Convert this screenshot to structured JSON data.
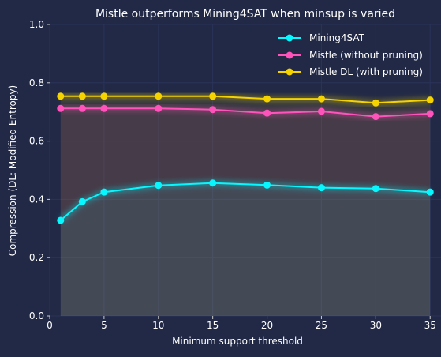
{
  "chart_data": {
    "type": "line",
    "title": "Mistle outperforms Mining4SAT when minsup is varied",
    "xlabel": "Minimum support threshold",
    "ylabel": "Compression (DL: Modified Entropy)",
    "xlim": [
      0,
      36
    ],
    "ylim": [
      0,
      1.0
    ],
    "xticks": [
      0,
      5,
      10,
      15,
      20,
      25,
      30,
      35
    ],
    "yticks": [
      0.0,
      0.2,
      0.4,
      0.6,
      0.8,
      1.0
    ],
    "xtick_labels": [
      "0",
      "5",
      "10",
      "15",
      "20",
      "25",
      "30",
      "35"
    ],
    "ytick_labels": [
      "0.0",
      "0.2",
      "0.4",
      "0.6",
      "0.8",
      "1.0"
    ],
    "grid": true,
    "legend_position": "top-right",
    "x": [
      1,
      3,
      5,
      10,
      15,
      20,
      25,
      30,
      35
    ],
    "series": [
      {
        "name": "Mining4SAT",
        "color": "#08F7FE",
        "values": [
          0.328,
          0.392,
          0.425,
          0.448,
          0.456,
          0.449,
          0.44,
          0.437,
          0.425
        ]
      },
      {
        "name": "Mistle (without pruning)",
        "color": "#FE53BB",
        "values": [
          0.712,
          0.712,
          0.712,
          0.712,
          0.708,
          0.696,
          0.702,
          0.684,
          0.694
        ]
      },
      {
        "name": "Mistle DL (with pruning)",
        "color": "#F5D300",
        "values": [
          0.754,
          0.754,
          0.754,
          0.754,
          0.754,
          0.745,
          0.745,
          0.731,
          0.741
        ]
      }
    ]
  }
}
